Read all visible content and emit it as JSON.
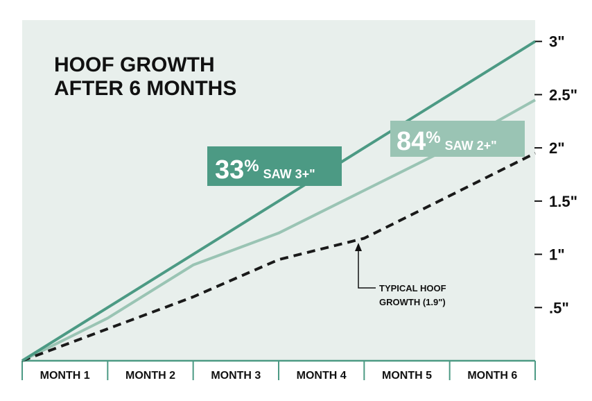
{
  "chart_data": {
    "type": "line",
    "title": [
      "HOOF GROWTH",
      "AFTER 6 MONTHS"
    ],
    "x": [
      0,
      1,
      2,
      3,
      4,
      5,
      6
    ],
    "categories": [
      "MONTH 1",
      "MONTH 2",
      "MONTH 3",
      "MONTH 4",
      "MONTH 5",
      "MONTH 6"
    ],
    "y_ticks": [
      {
        "value": 0.5,
        "label": ".5\""
      },
      {
        "value": 1.0,
        "label": "1\""
      },
      {
        "value": 1.5,
        "label": "1.5\""
      },
      {
        "value": 2.0,
        "label": "2\""
      },
      {
        "value": 2.5,
        "label": "2.5\""
      },
      {
        "value": 3.0,
        "label": "3\""
      }
    ],
    "ylim": [
      0,
      3.2
    ],
    "grid": false,
    "series": [
      {
        "values": [
          0,
          0.5,
          1.0,
          1.5,
          2.0,
          2.5,
          3.0
        ],
        "color": "#4c9a84",
        "style": "solid"
      },
      {
        "values": [
          0,
          0.4,
          0.9,
          1.2,
          1.6,
          2.0,
          2.45
        ],
        "color": "#9ac4b4",
        "style": "solid"
      },
      {
        "values": [
          0,
          0.3,
          0.6,
          0.95,
          1.15,
          1.55,
          1.95
        ],
        "color": "#1a1a1a",
        "style": "dashed"
      }
    ],
    "annotations": {
      "badge_top": {
        "number": "33",
        "percent": "%",
        "text": "SAW 3+\"",
        "color": "#4c9a84"
      },
      "badge_mid": {
        "number": "84",
        "percent": "%",
        "text": "SAW 2+\"",
        "color": "#9ac4b4"
      },
      "typical": {
        "line1": "TYPICAL HOOF",
        "line2": "GROWTH (1.9\")"
      }
    }
  },
  "colors": {
    "plot_background": "#e8efec",
    "plot_border": "#4c9a84"
  }
}
